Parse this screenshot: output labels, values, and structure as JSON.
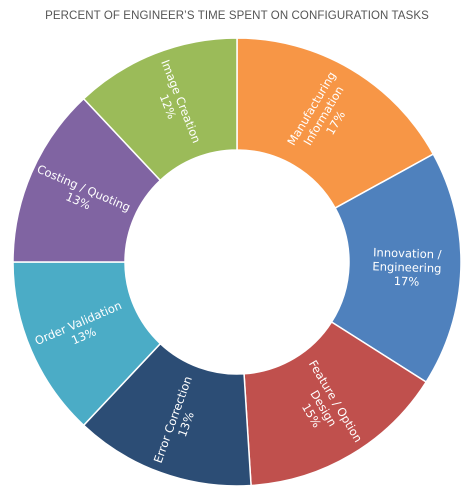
{
  "chart_data": {
    "type": "pie",
    "title": "PERCENT OF ENGINEER’S TIME SPENT ON CONFIGURATION TASKS",
    "hole": true,
    "slices": [
      {
        "label": "Manufacturing Information",
        "value": 17,
        "value_label": "17%",
        "label_lines": [
          "Manufacturing",
          "Information",
          "17%"
        ],
        "color": "#F79646"
      },
      {
        "label": "Innovation / Engineering",
        "value": 17,
        "value_label": "17%",
        "label_lines": [
          "Innovation /",
          "Engineering",
          "17%"
        ],
        "color": "#4F81BD"
      },
      {
        "label": "Feature / Option Design",
        "value": 15,
        "value_label": "15%",
        "label_lines": [
          "Feature / Option",
          "Design",
          "15%"
        ],
        "color": "#C0504D"
      },
      {
        "label": "Error Correction",
        "value": 13,
        "value_label": "13%",
        "label_lines": [
          "Error Correction",
          "13%"
        ],
        "color": "#2C4D75"
      },
      {
        "label": "Order Validation",
        "value": 13,
        "value_label": "13%",
        "label_lines": [
          "Order Validation",
          "13%"
        ],
        "color": "#4BACC6"
      },
      {
        "label": "Costing / Quoting",
        "value": 13,
        "value_label": "13%",
        "label_lines": [
          "Costing / Quoting",
          "13%"
        ],
        "color": "#8064A2"
      },
      {
        "label": "Image Creation",
        "value": 12,
        "value_label": "12%",
        "label_lines": [
          "Image Creation",
          "12%"
        ],
        "color": "#9BBB59"
      }
    ]
  }
}
